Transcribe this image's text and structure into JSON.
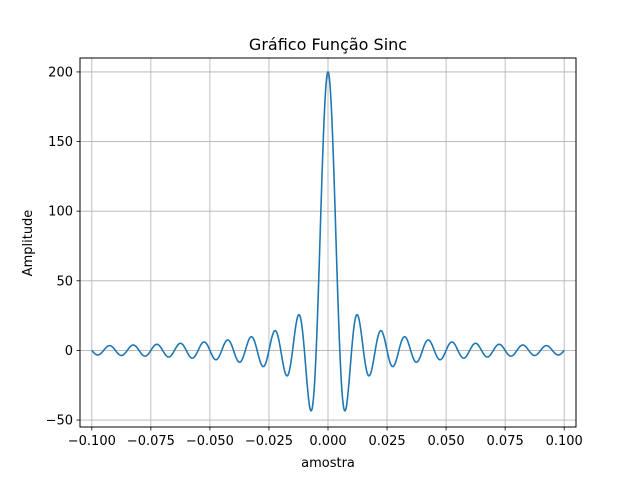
{
  "chart_data": {
    "type": "line",
    "title": "Gráfico Função Sinc",
    "xlabel": "amostra",
    "ylabel": "Amplitude",
    "xlim": [
      -0.105,
      0.105
    ],
    "ylim": [
      -55,
      210
    ],
    "xticks": [
      -0.1,
      -0.075,
      -0.05,
      -0.025,
      0.0,
      0.025,
      0.05,
      0.075,
      0.1
    ],
    "xtick_labels": [
      "−0.100",
      "−0.075",
      "−0.050",
      "−0.025",
      "0.000",
      "0.025",
      "0.050",
      "0.075",
      "0.100"
    ],
    "yticks": [
      -50,
      0,
      50,
      100,
      150,
      200
    ],
    "ytick_labels": [
      "−50",
      "0",
      "50",
      "100",
      "150",
      "200"
    ],
    "grid": true,
    "series": [
      {
        "color": "#1f77b4",
        "function": "200*sin(2*pi*100*t)/(2*pi*100*t)",
        "x_range": [
          -0.1,
          0.1
        ],
        "peak": 200,
        "zero_spacing": 0.005
      }
    ]
  }
}
